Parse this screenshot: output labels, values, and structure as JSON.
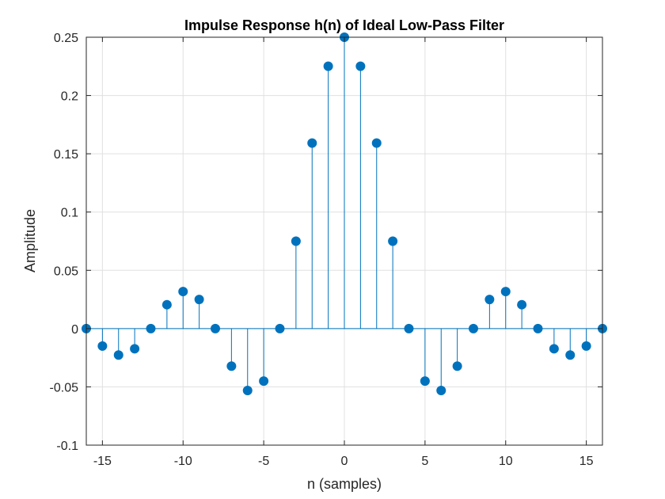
{
  "chart_data": {
    "type": "stem",
    "title": "Impulse Response h(n) of Ideal Low-Pass Filter",
    "xlabel": "n (samples)",
    "ylabel": "Amplitude",
    "xlim": [
      -16,
      16
    ],
    "ylim": [
      -0.1,
      0.25
    ],
    "xticks": [
      -15,
      -10,
      -5,
      0,
      5,
      10,
      15
    ],
    "yticks": [
      -0.1,
      -0.05,
      0,
      0.05,
      0.1,
      0.15,
      0.2,
      0.25
    ],
    "xtick_labels": [
      "-15",
      "-10",
      "-5",
      "0",
      "5",
      "10",
      "15"
    ],
    "ytick_labels": [
      "-0.1",
      "-0.05",
      "0",
      "0.05",
      "0.1",
      "0.15",
      "0.2",
      "0.25"
    ],
    "grid": true,
    "color": "#0072BD",
    "x": [
      -16,
      -15,
      -14,
      -13,
      -12,
      -11,
      -10,
      -9,
      -8,
      -7,
      -6,
      -5,
      -4,
      -3,
      -2,
      -1,
      0,
      1,
      2,
      3,
      4,
      5,
      6,
      7,
      8,
      9,
      10,
      11,
      12,
      13,
      14,
      15,
      16
    ],
    "y": [
      0,
      -0.015,
      -0.0227,
      -0.0173,
      0,
      0.0205,
      0.0318,
      0.025,
      0,
      -0.0322,
      -0.0531,
      -0.045,
      0,
      0.075,
      0.1592,
      0.2251,
      0.25,
      0.2251,
      0.1592,
      0.075,
      0,
      -0.045,
      -0.0531,
      -0.0322,
      0,
      0.025,
      0.0318,
      0.0205,
      0,
      -0.0173,
      -0.0227,
      -0.015,
      0
    ]
  }
}
